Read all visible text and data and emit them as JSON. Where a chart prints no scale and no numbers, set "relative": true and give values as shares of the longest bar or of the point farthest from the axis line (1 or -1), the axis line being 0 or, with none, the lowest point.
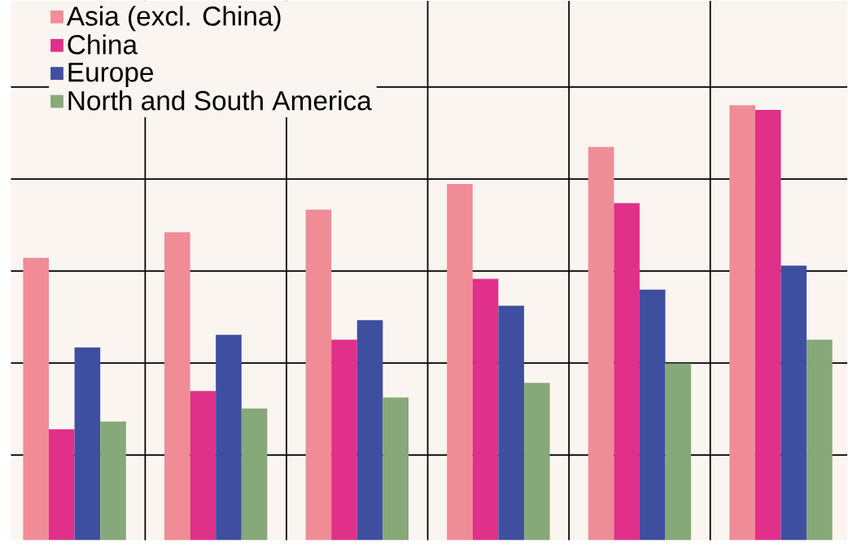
{
  "chart_data": {
    "type": "bar",
    "relative": true,
    "categories": [
      null,
      null,
      null,
      null,
      null,
      null
    ],
    "series": [
      {
        "name": "Asia (excl. China)",
        "color": "#f08c96",
        "values": [
          0.649,
          0.708,
          0.76,
          0.819,
          0.904,
          1
        ]
      },
      {
        "name": "China",
        "color": "#e0308a",
        "values": [
          0.255,
          0.343,
          0.461,
          0.601,
          0.775,
          0.989
        ]
      },
      {
        "name": "Europe",
        "color": "#3f4fa0",
        "values": [
          0.443,
          0.472,
          0.506,
          0.539,
          0.576,
          0.631
        ]
      },
      {
        "name": "North and South America",
        "color": "#87a878",
        "values": [
          0.273,
          0.303,
          0.328,
          0.362,
          0.406,
          0.461
        ]
      }
    ],
    "grid": true,
    "legend": "top left",
    "tick_labels": false
  }
}
